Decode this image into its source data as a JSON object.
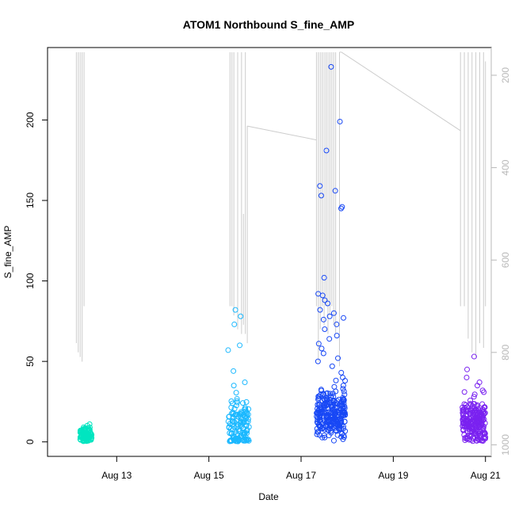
{
  "chart_data": {
    "type": "scatter",
    "title": "ATOM1 Northbound S_fine_AMP",
    "xlabel": "Date",
    "ylabel": "S_fine_AMP",
    "x_range": [
      "2024-08-11T12:00",
      "2024-08-21T03:00"
    ],
    "ylim": [
      -9,
      245
    ],
    "x_ticks": [
      {
        "date": "2024-08-13",
        "label": "Aug 13"
      },
      {
        "date": "2024-08-15",
        "label": "Aug 15"
      },
      {
        "date": "2024-08-17",
        "label": "Aug 17"
      },
      {
        "date": "2024-08-19",
        "label": "Aug 19"
      },
      {
        "date": "2024-08-21",
        "label": "Aug 21"
      }
    ],
    "y_ticks": [
      0,
      50,
      100,
      150,
      200
    ],
    "right_axis": {
      "range": [
        140,
        1025
      ],
      "inverted": true,
      "ticks": [
        200,
        400,
        600,
        800,
        1000
      ],
      "color": "#b8b8b8",
      "line_color": "#cccccc"
    },
    "grid": false,
    "legend": "none",
    "clusters": [
      {
        "start": "2024-08-12T05:00",
        "end": "2024-08-12T11:00",
        "color": "#00e5c0",
        "mean": 4,
        "sd": 2.5,
        "n": 110,
        "outliers": [
          11,
          9
        ]
      },
      {
        "start": "2024-08-15T10:00",
        "end": "2024-08-15T21:00",
        "color": "#1ab8ff",
        "mean": 10,
        "sd": 9,
        "n": 130,
        "outliers": [
          82,
          78,
          73,
          60,
          57,
          44,
          37,
          35
        ]
      },
      {
        "start": "2024-08-17T08:00",
        "end": "2024-08-17T23:00",
        "color": "#1848f5",
        "mean": 17,
        "sd": 8,
        "n": 260,
        "outliers": [
          233,
          199,
          181,
          159,
          156,
          153,
          146,
          145,
          102,
          92,
          91,
          88,
          86,
          82,
          80,
          78,
          77,
          76,
          73,
          70,
          66,
          64,
          61,
          58,
          55,
          52,
          50,
          47,
          43,
          40,
          38,
          35
        ]
      },
      {
        "start": "2024-08-20T12:00",
        "end": "2024-08-21T00:00",
        "color": "#7a22f0",
        "mean": 12,
        "sd": 7,
        "n": 230,
        "outliers": [
          53,
          45,
          40,
          37,
          35,
          32
        ]
      }
    ],
    "depth_segments": [
      [
        [
          "2024-08-12T03:00",
          780
        ],
        [
          "2024-08-12T03:00",
          150
        ]
      ],
      [
        [
          "2024-08-12T04:00",
          800
        ],
        [
          "2024-08-12T04:00",
          150
        ]
      ],
      [
        [
          "2024-08-12T05:00",
          810
        ],
        [
          "2024-08-12T05:00",
          150
        ]
      ],
      [
        [
          "2024-08-12T06:00",
          820
        ],
        [
          "2024-08-12T06:00",
          150
        ]
      ],
      [
        [
          "2024-08-12T07:00",
          700
        ],
        [
          "2024-08-12T07:00",
          150
        ]
      ],
      [
        [
          "2024-08-15T11:00",
          700
        ],
        [
          "2024-08-15T11:00",
          150
        ]
      ],
      [
        [
          "2024-08-15T12:00",
          700
        ],
        [
          "2024-08-15T12:00",
          150
        ]
      ],
      [
        [
          "2024-08-15T13:00",
          720
        ],
        [
          "2024-08-15T13:00",
          150
        ]
      ],
      [
        [
          "2024-08-15T15:00",
          750
        ],
        [
          "2024-08-15T15:00",
          150
        ]
      ],
      [
        [
          "2024-08-15T17:00",
          760
        ],
        [
          "2024-08-15T17:00",
          150
        ]
      ],
      [
        [
          "2024-08-15T18:00",
          740
        ],
        [
          "2024-08-15T18:00",
          500
        ]
      ],
      [
        [
          "2024-08-15T19:00",
          760
        ],
        [
          "2024-08-15T19:00",
          150
        ]
      ],
      [
        [
          "2024-08-15T20:00",
          780
        ],
        [
          "2024-08-15T20:00",
          310
        ]
      ],
      [
        [
          "2024-08-15T20:00",
          310
        ],
        [
          "2024-08-17T08:00",
          340
        ]
      ],
      [
        [
          "2024-08-17T08:00",
          700
        ],
        [
          "2024-08-17T08:00",
          150
        ]
      ],
      [
        [
          "2024-08-17T09:00",
          820
        ],
        [
          "2024-08-17T09:00",
          150
        ]
      ],
      [
        [
          "2024-08-17T10:00",
          750
        ],
        [
          "2024-08-17T10:00",
          150
        ]
      ],
      [
        [
          "2024-08-17T11:00",
          700
        ],
        [
          "2024-08-17T11:00",
          150
        ]
      ],
      [
        [
          "2024-08-17T12:00",
          740
        ],
        [
          "2024-08-17T12:00",
          150
        ]
      ],
      [
        [
          "2024-08-17T13:00",
          700
        ],
        [
          "2024-08-17T13:00",
          150
        ]
      ],
      [
        [
          "2024-08-17T14:00",
          760
        ],
        [
          "2024-08-17T14:00",
          150
        ]
      ],
      [
        [
          "2024-08-17T15:00",
          720
        ],
        [
          "2024-08-17T15:00",
          150
        ]
      ],
      [
        [
          "2024-08-17T16:00",
          700
        ],
        [
          "2024-08-17T16:00",
          150
        ]
      ],
      [
        [
          "2024-08-17T17:00",
          740
        ],
        [
          "2024-08-17T17:00",
          150
        ]
      ],
      [
        [
          "2024-08-17T18:00",
          760
        ],
        [
          "2024-08-17T18:00",
          150
        ]
      ],
      [
        [
          "2024-08-17T20:00",
          830
        ],
        [
          "2024-08-17T20:00",
          150
        ]
      ],
      [
        [
          "2024-08-17T20:00",
          150
        ],
        [
          "2024-08-17T21:00",
          150
        ]
      ],
      [
        [
          "2024-08-17T21:00",
          150
        ],
        [
          "2024-08-20T11:00",
          320
        ]
      ],
      [
        [
          "2024-08-20T11:00",
          700
        ],
        [
          "2024-08-20T11:00",
          150
        ]
      ],
      [
        [
          "2024-08-20T13:00",
          700
        ],
        [
          "2024-08-20T13:00",
          150
        ]
      ],
      [
        [
          "2024-08-20T15:00",
          770
        ],
        [
          "2024-08-20T15:00",
          150
        ]
      ],
      [
        [
          "2024-08-20T17:00",
          800
        ],
        [
          "2024-08-20T17:00",
          150
        ]
      ],
      [
        [
          "2024-08-20T19:00",
          810
        ],
        [
          "2024-08-20T19:00",
          150
        ]
      ],
      [
        [
          "2024-08-20T21:00",
          780
        ],
        [
          "2024-08-20T21:00",
          150
        ]
      ],
      [
        [
          "2024-08-20T23:00",
          790
        ],
        [
          "2024-08-20T23:00",
          150
        ]
      ],
      [
        [
          "2024-08-21T00:00",
          700
        ],
        [
          "2024-08-21T00:00",
          170
        ]
      ]
    ]
  }
}
